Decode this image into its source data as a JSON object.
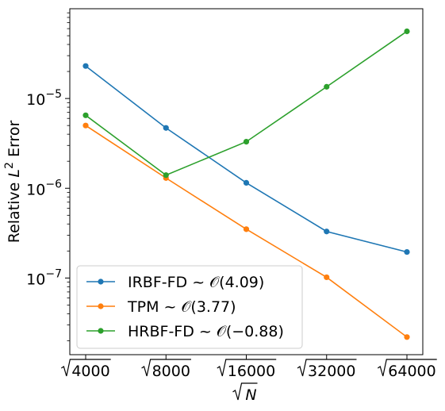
{
  "chart_data": {
    "type": "line",
    "xlabel": "√N",
    "ylabel": "Relative L² Error",
    "x_scale": "log",
    "y_scale": "log",
    "x": [
      4000,
      8000,
      16000,
      32000,
      64000
    ],
    "x_tick_labels": [
      "4000",
      "8000",
      "16000",
      "32000",
      "64000"
    ],
    "y_ticks": [
      1e-07,
      1e-06,
      1e-05
    ],
    "y_tick_bases": [
      "10",
      "10",
      "10"
    ],
    "y_tick_exponents": [
      "−7",
      "−6",
      "−5"
    ],
    "ylim": [
      1.4e-08,
      0.0001
    ],
    "grid": false,
    "legend_position": "lower-left",
    "series": [
      {
        "name": "IRBF-FD ~ 𝒪(4.09)",
        "color": "#1f77b4",
        "values": [
          2.3e-05,
          4.7e-06,
          1.15e-06,
          3.3e-07,
          1.95e-07
        ]
      },
      {
        "name": "TPM ~ 𝒪(3.77)",
        "color": "#ff7f0e",
        "values": [
          5e-06,
          1.3e-06,
          3.5e-07,
          1.02e-07,
          2.2e-08
        ]
      },
      {
        "name": "HRBF-FD ~ 𝒪(−0.88)",
        "color": "#2ca02c",
        "values": [
          6.5e-06,
          1.4e-06,
          3.3e-06,
          1.35e-05,
          5.6e-05
        ]
      }
    ]
  }
}
